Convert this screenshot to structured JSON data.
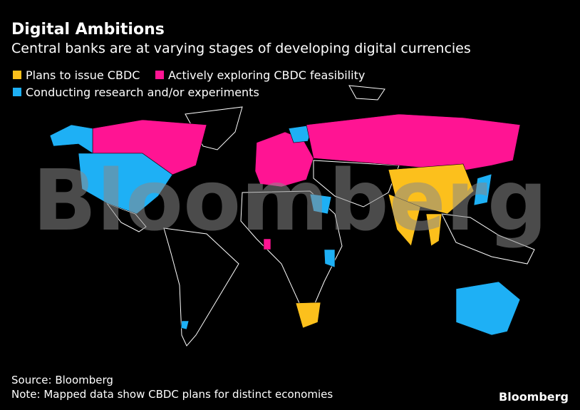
{
  "header": {
    "title": "Digital Ambitions",
    "subtitle": "Central banks are at varying stages of developing digital currencies"
  },
  "legend": [
    {
      "label": "Plans to issue CBDC",
      "color": "#fcc01c"
    },
    {
      "label": "Actively exploring CBDC feasibility",
      "color": "#ff1493"
    },
    {
      "label": "Conducting research and/or experiments",
      "color": "#1eb0f5"
    }
  ],
  "watermark": "Bloomberg",
  "footer": {
    "source": "Source: Bloomberg",
    "note": "Note: Mapped data show CBDC plans for distinct economies",
    "logo": "Bloomberg"
  }
}
